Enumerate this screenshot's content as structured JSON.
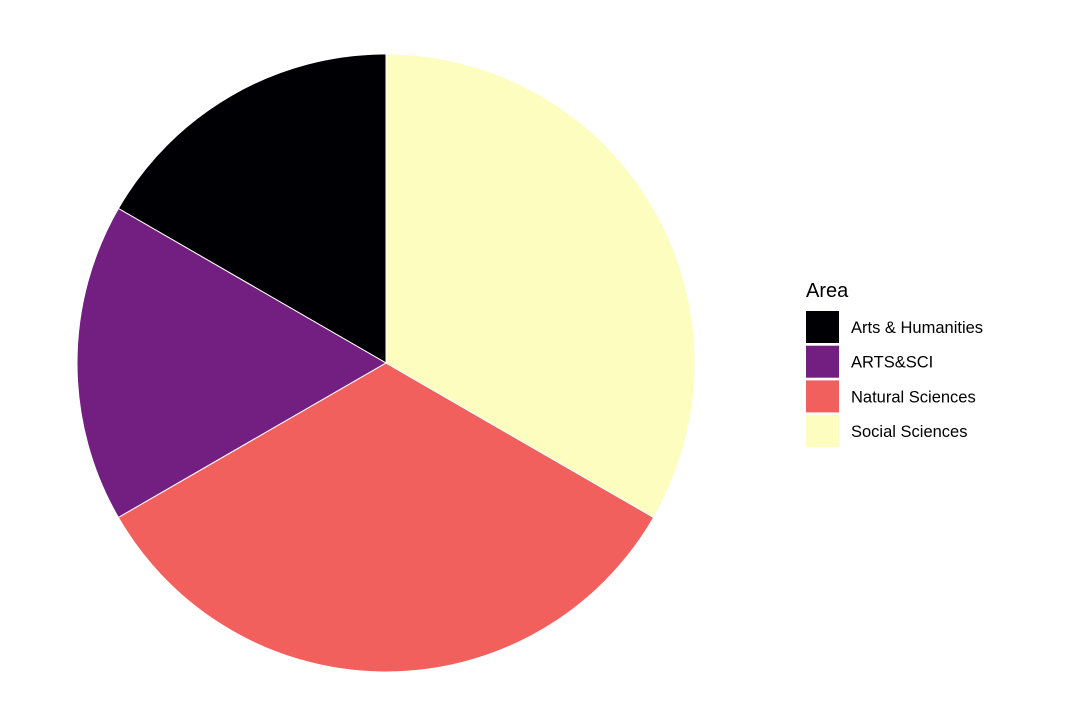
{
  "chart_data": {
    "type": "pie",
    "categories": [
      "Arts & Humanities",
      "ARTS&SCI",
      "Natural Sciences",
      "Social Sciences"
    ],
    "values": [
      1,
      1,
      2,
      2
    ],
    "colors": [
      "#000004",
      "#721F81",
      "#F1605D",
      "#FCFDBF"
    ],
    "legend": {
      "title": "Area",
      "entries": [
        "Arts & Humanities",
        "ARTS&SCI",
        "Natural Sciences",
        "Social Sciences"
      ],
      "placement": "right"
    },
    "start": "12 o'clock",
    "direction": "counter-clockwise",
    "title": ""
  }
}
